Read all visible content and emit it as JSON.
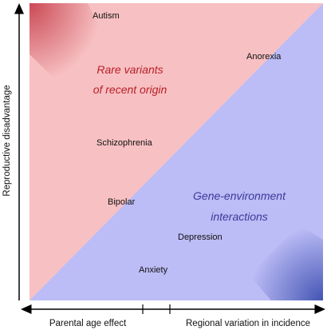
{
  "colors": {
    "red_region": "#f7c0c2",
    "blue_region": "#bcbcf6",
    "red_corner": "#c8424e",
    "blue_corner": "#3c4fb0",
    "red_text": "#b8202a",
    "blue_text": "#3a3a9a"
  },
  "regions": {
    "red_title_line1": "Rare variants",
    "red_title_line2": "of recent origin",
    "blue_title_line1": "Gene-environment",
    "blue_title_line2": "interactions"
  },
  "disorders": {
    "autism": "Autism",
    "anorexia": "Anorexia",
    "schizophrenia": "Schizophrenia",
    "bipolar": "Bipolar",
    "depression": "Depression",
    "anxiety": "Anxiety"
  },
  "axes": {
    "y_label": "Reproductive disadvantage",
    "x_left_label": "Parental age effect",
    "x_right_label": "Regional variation in incidence"
  }
}
